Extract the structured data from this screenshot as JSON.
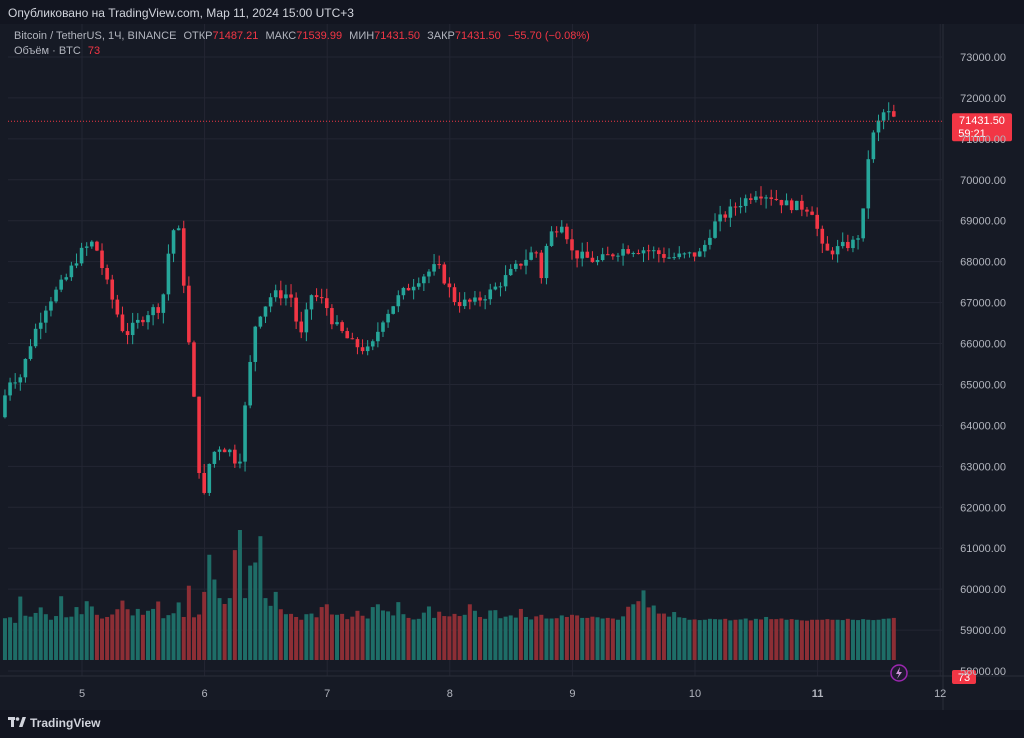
{
  "header": {
    "published": "Опубликовано на TradingView.com, Мар 11, 2024 15:00 UTC+3"
  },
  "legend": {
    "symbol": "Bitcoin / TetherUS, 1Ч, BINANCE",
    "open_label": "ОТКР",
    "open_value": "71487.21",
    "high_label": "МАКС",
    "high_value": "71539.99",
    "low_label": "МИН",
    "low_value": "71431.50",
    "close_label": "ЗАКР",
    "close_value": "71431.50",
    "change": "−55.70 (−0.08%)",
    "volume_label": "Объём · BTC",
    "volume_value": "73"
  },
  "price_tag": {
    "price": "71431.50",
    "countdown": "59:21",
    "volume_tag": "73"
  },
  "footer": {
    "brand": "TradingView"
  },
  "colors": {
    "up": "#26a69a",
    "down": "#f23645",
    "up_vol": "#1e6d67",
    "down_vol": "#8c2e35",
    "bg": "#161a25"
  },
  "chart_data": {
    "type": "candlestick",
    "ylim": [
      57600,
      73400
    ],
    "y_ticks": [
      58000,
      59000,
      60000,
      61000,
      62000,
      63000,
      64000,
      65000,
      66000,
      67000,
      68000,
      69000,
      70000,
      71000,
      72000,
      73000
    ],
    "y_tick_labels": [
      "58000.00",
      "59000.00",
      "60000.00",
      "61000.00",
      "62000.00",
      "63000.00",
      "64000.00",
      "65000.00",
      "66000.00",
      "67000.00",
      "68000.00",
      "69000.00",
      "70000.00",
      "71000.00",
      "72000.00",
      "73000.00"
    ],
    "x_ticks": [
      5,
      6,
      7,
      8,
      9,
      10,
      11,
      12
    ],
    "x_tick_labels": [
      "5",
      "6",
      "7",
      "8",
      "9",
      "10",
      "11",
      "12"
    ],
    "last_price": 71431.5,
    "candle_anchors": [
      [
        4.33,
        64200
      ],
      [
        4.4,
        65100
      ],
      [
        4.5,
        65200
      ],
      [
        4.6,
        66200
      ],
      [
        4.72,
        67000
      ],
      [
        4.87,
        67600
      ],
      [
        4.98,
        68200
      ],
      [
        5.1,
        68500
      ],
      [
        5.22,
        67300
      ],
      [
        5.35,
        66200
      ],
      [
        5.55,
        66800
      ],
      [
        5.65,
        66900
      ],
      [
        5.73,
        68800
      ],
      [
        5.8,
        68700
      ],
      [
        5.85,
        66700
      ],
      [
        5.92,
        64400
      ],
      [
        5.98,
        61900
      ],
      [
        6.03,
        63000
      ],
      [
        6.1,
        63500
      ],
      [
        6.2,
        63400
      ],
      [
        6.28,
        63000
      ],
      [
        6.35,
        65000
      ],
      [
        6.42,
        66600
      ],
      [
        6.55,
        67200
      ],
      [
        6.7,
        67200
      ],
      [
        6.78,
        66100
      ],
      [
        6.87,
        67200
      ],
      [
        6.98,
        67000
      ],
      [
        7.05,
        66500
      ],
      [
        7.2,
        66000
      ],
      [
        7.35,
        65800
      ],
      [
        7.45,
        66600
      ],
      [
        7.6,
        67200
      ],
      [
        7.75,
        67600
      ],
      [
        7.9,
        67900
      ],
      [
        8.05,
        67000
      ],
      [
        8.2,
        67000
      ],
      [
        8.35,
        67300
      ],
      [
        8.52,
        67800
      ],
      [
        8.7,
        68300
      ],
      [
        8.75,
        67600
      ],
      [
        8.8,
        68600
      ],
      [
        8.92,
        69000
      ],
      [
        9.0,
        68200
      ],
      [
        9.2,
        68000
      ],
      [
        9.4,
        68300
      ],
      [
        9.6,
        68300
      ],
      [
        9.8,
        68100
      ],
      [
        10.05,
        68200
      ],
      [
        10.15,
        68900
      ],
      [
        10.35,
        69400
      ],
      [
        10.5,
        69700
      ],
      [
        10.62,
        69600
      ],
      [
        10.75,
        69400
      ],
      [
        10.95,
        69300
      ],
      [
        11.05,
        68200
      ],
      [
        11.15,
        68300
      ],
      [
        11.32,
        68500
      ],
      [
        11.38,
        69300
      ],
      [
        11.42,
        70800
      ],
      [
        11.48,
        71300
      ],
      [
        11.55,
        71700
      ],
      [
        11.62,
        71500
      ],
      [
        11.65,
        71431.5
      ]
    ],
    "volume_values": [
      1350,
      1380,
      1200,
      2050,
      1430,
      1400,
      1520,
      1700,
      1480,
      1300,
      1420,
      2060,
      1380,
      1400,
      1710,
      1480,
      1900,
      1730,
      1460,
      1340,
      1390,
      1470,
      1640,
      1920,
      1640,
      1440,
      1650,
      1460,
      1590,
      1650,
      1890,
      1350,
      1450,
      1510,
      1860,
      1390,
      2400,
      1380,
      1470,
      2200,
      3400,
      2600,
      2000,
      1810,
      2000,
      3550,
      4200,
      2000,
      3050,
      3150,
      4000,
      2000,
      1750,
      2200,
      1640,
      1480,
      1490,
      1390,
      1300,
      1480,
      1500,
      1380,
      1710,
      1800,
      1470,
      1460,
      1490,
      1320,
      1400,
      1590,
      1430,
      1340,
      1710,
      1800,
      1600,
      1570,
      1440,
      1870,
      1480,
      1360,
      1310,
      1330,
      1530,
      1730,
      1360,
      1560,
      1420,
      1410,
      1490,
      1420,
      1460,
      1800,
      1590,
      1390,
      1330,
      1600,
      1610,
      1350,
      1400,
      1440,
      1370,
      1650,
      1390,
      1310,
      1410,
      1460,
      1340,
      1340,
      1350,
      1440,
      1390,
      1460,
      1440,
      1360,
      1360,
      1400,
      1380,
      1340,
      1360,
      1340,
      1300,
      1410,
      1720,
      1800,
      1900,
      2250,
      1700,
      1760,
      1500,
      1500,
      1400,
      1550,
      1380,
      1360,
      1300,
      1310,
      1290,
      1300,
      1330,
      1320,
      1310,
      1330,
      1280,
      1300,
      1310,
      1340,
      1280,
      1330,
      1310,
      1390,
      1320,
      1320,
      1340,
      1300,
      1320,
      1300,
      1280,
      1270,
      1300,
      1300,
      1300,
      1320,
      1300,
      1300,
      1290,
      1330,
      1300,
      1290,
      1320,
      1300,
      1290,
      1300,
      1330,
      1340,
      1360,
      1400,
      1440,
      1480,
      1520,
      1600,
      1670,
      1710,
      1650,
      1600,
      1440,
      1470,
      1500,
      1430,
      1390,
      1400,
      1420,
      1460,
      1430,
      1420,
      1350,
      1400,
      1600,
      1720,
      1900,
      1600,
      1520,
      1800,
      1900,
      4200,
      3500,
      2700,
      2800,
      2950,
      1500
    ]
  }
}
